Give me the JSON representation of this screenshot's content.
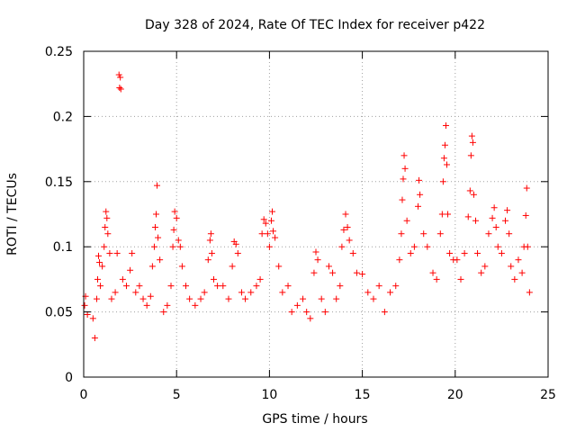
{
  "chart_data": {
    "type": "scatter",
    "title": "Day 328 of 2024, Rate Of TEC Index for receiver p422",
    "xlabel": "GPS time / hours",
    "ylabel": "ROTI / TECUs",
    "xlim": [
      0,
      25
    ],
    "ylim": [
      0,
      0.25
    ],
    "x_ticks": [
      0,
      5,
      10,
      15,
      20,
      25
    ],
    "x_tick_labels": [
      "0",
      "5",
      "10",
      "15",
      "20",
      "25"
    ],
    "y_ticks": [
      0,
      0.05,
      0.1,
      0.15,
      0.2,
      0.25
    ],
    "y_tick_labels": [
      "0",
      "0.05",
      "0.1",
      "0.15",
      "0.2",
      "0.25"
    ],
    "grid": true,
    "marker": "+",
    "marker_color": "#ff0000",
    "series": [
      {
        "name": "ROTI",
        "points": [
          [
            0.05,
            0.055
          ],
          [
            0.1,
            0.062
          ],
          [
            0.2,
            0.048
          ],
          [
            0.5,
            0.045
          ],
          [
            0.6,
            0.03
          ],
          [
            0.7,
            0.06
          ],
          [
            0.75,
            0.075
          ],
          [
            0.8,
            0.093
          ],
          [
            0.85,
            0.088
          ],
          [
            0.9,
            0.07
          ],
          [
            1.0,
            0.085
          ],
          [
            1.1,
            0.1
          ],
          [
            1.15,
            0.115
          ],
          [
            1.2,
            0.127
          ],
          [
            1.25,
            0.122
          ],
          [
            1.3,
            0.11
          ],
          [
            1.4,
            0.095
          ],
          [
            1.5,
            0.06
          ],
          [
            1.7,
            0.065
          ],
          [
            1.8,
            0.095
          ],
          [
            1.9,
            0.232
          ],
          [
            1.93,
            0.222
          ],
          [
            1.97,
            0.23
          ],
          [
            2.0,
            0.221
          ],
          [
            2.1,
            0.075
          ],
          [
            2.3,
            0.07
          ],
          [
            2.5,
            0.082
          ],
          [
            2.6,
            0.095
          ],
          [
            2.8,
            0.065
          ],
          [
            3.0,
            0.07
          ],
          [
            3.2,
            0.06
          ],
          [
            3.4,
            0.055
          ],
          [
            3.6,
            0.062
          ],
          [
            3.7,
            0.085
          ],
          [
            3.8,
            0.1
          ],
          [
            3.85,
            0.115
          ],
          [
            3.9,
            0.125
          ],
          [
            3.95,
            0.147
          ],
          [
            4.0,
            0.107
          ],
          [
            4.1,
            0.09
          ],
          [
            4.3,
            0.05
          ],
          [
            4.5,
            0.055
          ],
          [
            4.7,
            0.07
          ],
          [
            4.8,
            0.1
          ],
          [
            4.85,
            0.113
          ],
          [
            4.9,
            0.127
          ],
          [
            5.0,
            0.122
          ],
          [
            5.1,
            0.105
          ],
          [
            5.2,
            0.1
          ],
          [
            5.3,
            0.085
          ],
          [
            5.5,
            0.07
          ],
          [
            5.7,
            0.06
          ],
          [
            6.0,
            0.055
          ],
          [
            6.3,
            0.06
          ],
          [
            6.5,
            0.065
          ],
          [
            6.7,
            0.09
          ],
          [
            6.8,
            0.105
          ],
          [
            6.85,
            0.11
          ],
          [
            6.9,
            0.095
          ],
          [
            7.0,
            0.075
          ],
          [
            7.2,
            0.07
          ],
          [
            7.5,
            0.07
          ],
          [
            7.8,
            0.06
          ],
          [
            8.0,
            0.085
          ],
          [
            8.1,
            0.104
          ],
          [
            8.2,
            0.102
          ],
          [
            8.3,
            0.095
          ],
          [
            8.5,
            0.065
          ],
          [
            8.7,
            0.06
          ],
          [
            9.0,
            0.065
          ],
          [
            9.3,
            0.07
          ],
          [
            9.5,
            0.075
          ],
          [
            9.6,
            0.11
          ],
          [
            9.7,
            0.121
          ],
          [
            9.8,
            0.118
          ],
          [
            9.9,
            0.11
          ],
          [
            10.0,
            0.1
          ],
          [
            10.1,
            0.12
          ],
          [
            10.15,
            0.127
          ],
          [
            10.2,
            0.112
          ],
          [
            10.3,
            0.107
          ],
          [
            10.5,
            0.085
          ],
          [
            10.7,
            0.065
          ],
          [
            11.0,
            0.07
          ],
          [
            11.2,
            0.05
          ],
          [
            11.5,
            0.055
          ],
          [
            11.8,
            0.06
          ],
          [
            12.0,
            0.05
          ],
          [
            12.2,
            0.045
          ],
          [
            12.4,
            0.08
          ],
          [
            12.5,
            0.096
          ],
          [
            12.6,
            0.09
          ],
          [
            12.8,
            0.06
          ],
          [
            13.0,
            0.05
          ],
          [
            13.2,
            0.085
          ],
          [
            13.4,
            0.08
          ],
          [
            13.6,
            0.06
          ],
          [
            13.8,
            0.07
          ],
          [
            13.9,
            0.1
          ],
          [
            14.0,
            0.113
          ],
          [
            14.1,
            0.125
          ],
          [
            14.2,
            0.115
          ],
          [
            14.3,
            0.105
          ],
          [
            14.5,
            0.095
          ],
          [
            14.7,
            0.08
          ],
          [
            15.0,
            0.079
          ],
          [
            15.3,
            0.065
          ],
          [
            15.6,
            0.06
          ],
          [
            15.9,
            0.07
          ],
          [
            16.2,
            0.05
          ],
          [
            16.5,
            0.065
          ],
          [
            16.8,
            0.07
          ],
          [
            17.0,
            0.09
          ],
          [
            17.1,
            0.11
          ],
          [
            17.15,
            0.136
          ],
          [
            17.2,
            0.152
          ],
          [
            17.25,
            0.17
          ],
          [
            17.3,
            0.16
          ],
          [
            17.4,
            0.12
          ],
          [
            17.6,
            0.095
          ],
          [
            17.8,
            0.1
          ],
          [
            18.0,
            0.131
          ],
          [
            18.05,
            0.151
          ],
          [
            18.1,
            0.14
          ],
          [
            18.3,
            0.11
          ],
          [
            18.5,
            0.1
          ],
          [
            18.8,
            0.08
          ],
          [
            19.0,
            0.075
          ],
          [
            19.2,
            0.11
          ],
          [
            19.3,
            0.125
          ],
          [
            19.35,
            0.15
          ],
          [
            19.4,
            0.168
          ],
          [
            19.45,
            0.178
          ],
          [
            19.5,
            0.193
          ],
          [
            19.55,
            0.163
          ],
          [
            19.6,
            0.125
          ],
          [
            19.7,
            0.095
          ],
          [
            19.9,
            0.09
          ],
          [
            20.1,
            0.09
          ],
          [
            20.3,
            0.075
          ],
          [
            20.5,
            0.095
          ],
          [
            20.7,
            0.123
          ],
          [
            20.8,
            0.143
          ],
          [
            20.85,
            0.17
          ],
          [
            20.9,
            0.185
          ],
          [
            20.95,
            0.18
          ],
          [
            21.0,
            0.14
          ],
          [
            21.1,
            0.12
          ],
          [
            21.2,
            0.095
          ],
          [
            21.4,
            0.08
          ],
          [
            21.6,
            0.085
          ],
          [
            21.8,
            0.11
          ],
          [
            22.0,
            0.122
          ],
          [
            22.1,
            0.13
          ],
          [
            22.2,
            0.115
          ],
          [
            22.3,
            0.1
          ],
          [
            22.5,
            0.095
          ],
          [
            22.7,
            0.12
          ],
          [
            22.8,
            0.128
          ],
          [
            22.9,
            0.11
          ],
          [
            23.0,
            0.085
          ],
          [
            23.2,
            0.075
          ],
          [
            23.4,
            0.09
          ],
          [
            23.6,
            0.08
          ],
          [
            23.7,
            0.1
          ],
          [
            23.8,
            0.124
          ],
          [
            23.85,
            0.145
          ],
          [
            23.9,
            0.1
          ],
          [
            24.0,
            0.065
          ]
        ]
      }
    ]
  }
}
